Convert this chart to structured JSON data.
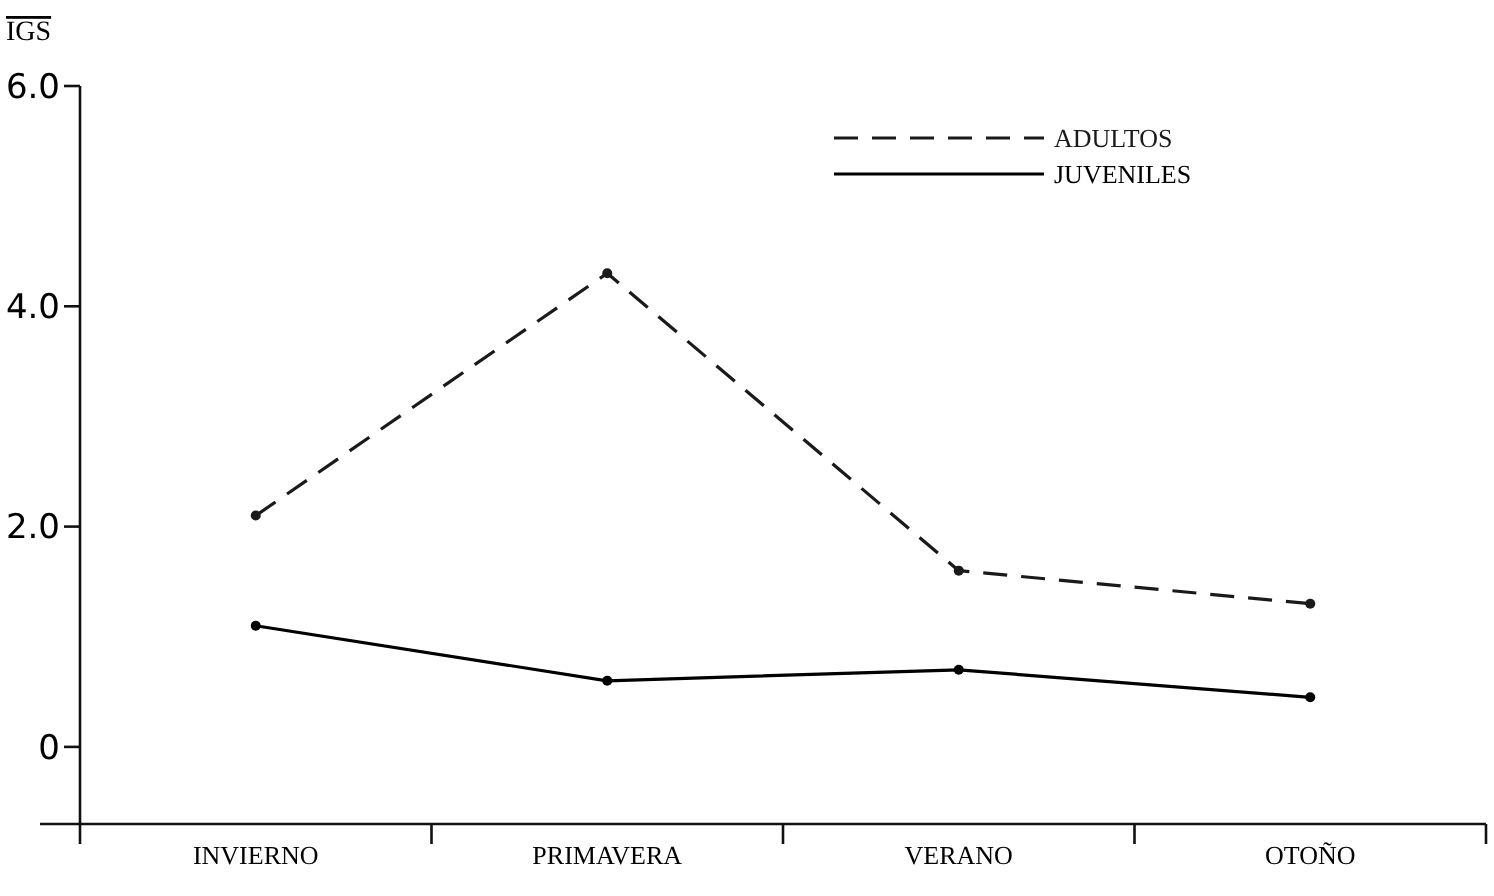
{
  "chart_data": {
    "type": "line",
    "ylabel": "IGS",
    "categories": [
      "INVIERNO",
      "PRIMAVERA",
      "VERANO",
      "OTOÑO"
    ],
    "series": [
      {
        "name": "ADULTOS",
        "color": "#1a1a1a",
        "values": [
          2.1,
          4.3,
          1.6,
          1.3
        ],
        "line_style": "dashed"
      },
      {
        "name": "JUVENILES",
        "color": "#000000",
        "values": [
          1.1,
          0.6,
          0.7,
          0.45
        ],
        "line_style": "solid"
      }
    ],
    "ylim": [
      -0.7,
      6
    ],
    "yticks": [
      {
        "value": 0,
        "label": "0"
      },
      {
        "value": 2,
        "label": "2.0"
      },
      {
        "value": 4,
        "label": "4.0"
      },
      {
        "value": 6,
        "label": "6.0"
      }
    ],
    "legend": "top right",
    "marker": "circle",
    "grid": false
  }
}
